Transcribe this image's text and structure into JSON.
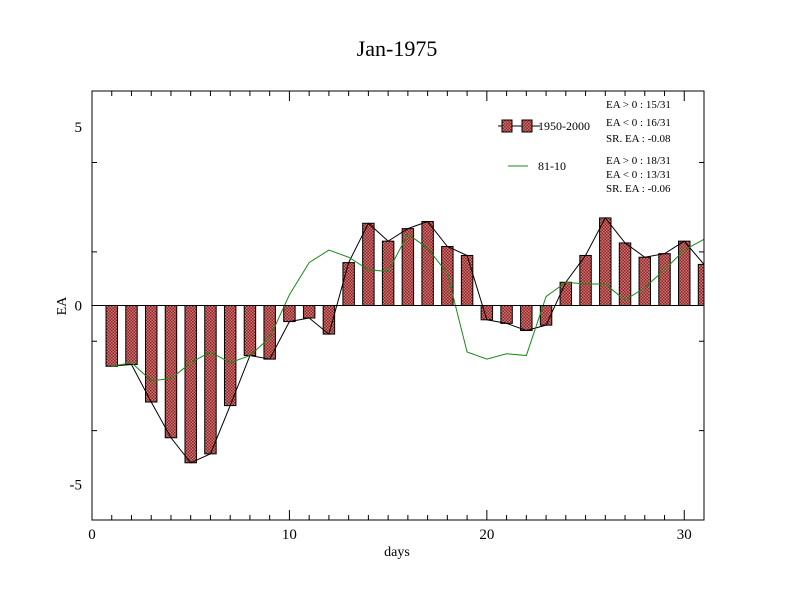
{
  "chart_data": {
    "type": "bar",
    "title": "Jan-1975",
    "xlabel": "days",
    "ylabel": "EA",
    "xlim": [
      0,
      31
    ],
    "ylim": [
      -6,
      6
    ],
    "xticks": [
      0,
      10,
      20,
      30
    ],
    "yticks": [
      -5,
      0,
      5
    ],
    "grid": false,
    "x": [
      1,
      2,
      3,
      4,
      5,
      6,
      7,
      8,
      9,
      10,
      11,
      12,
      13,
      14,
      15,
      16,
      17,
      18,
      19,
      20,
      21,
      22,
      23,
      24,
      25,
      26,
      27,
      28,
      29,
      30,
      31
    ],
    "series": [
      {
        "name": "1950-2000",
        "kind": "bar",
        "color": "#e07070",
        "values": [
          -1.7,
          -1.65,
          -2.7,
          -3.7,
          -4.4,
          -4.15,
          -2.8,
          -1.4,
          -1.5,
          -0.45,
          -0.35,
          -0.8,
          1.2,
          2.3,
          1.8,
          2.15,
          2.35,
          1.65,
          1.4,
          -0.4,
          -0.5,
          -0.7,
          -0.55,
          0.65,
          1.4,
          2.45,
          1.75,
          1.35,
          1.45,
          1.8,
          1.15
        ]
      },
      {
        "name": "81-10",
        "kind": "line",
        "color": "#1a8a1a",
        "values": [
          -1.7,
          -1.6,
          -2.1,
          -2.05,
          -1.6,
          -1.3,
          -1.6,
          -1.4,
          -0.9,
          0.3,
          1.2,
          1.55,
          1.35,
          1.0,
          0.95,
          2.0,
          1.6,
          0.9,
          -1.3,
          -1.5,
          -1.35,
          -1.4,
          0.25,
          0.65,
          0.6,
          0.6,
          0.15,
          0.5,
          1.0,
          1.55,
          1.85
        ]
      }
    ],
    "legend": {
      "placement": "top-right",
      "stats": [
        [
          "EA > 0 : 15/31",
          "EA < 0 : 16/31",
          "SR. EA : -0.08"
        ],
        [
          "EA > 0 : 18/31",
          "EA < 0 : 13/31",
          "SR. EA : -0.06"
        ]
      ]
    }
  }
}
